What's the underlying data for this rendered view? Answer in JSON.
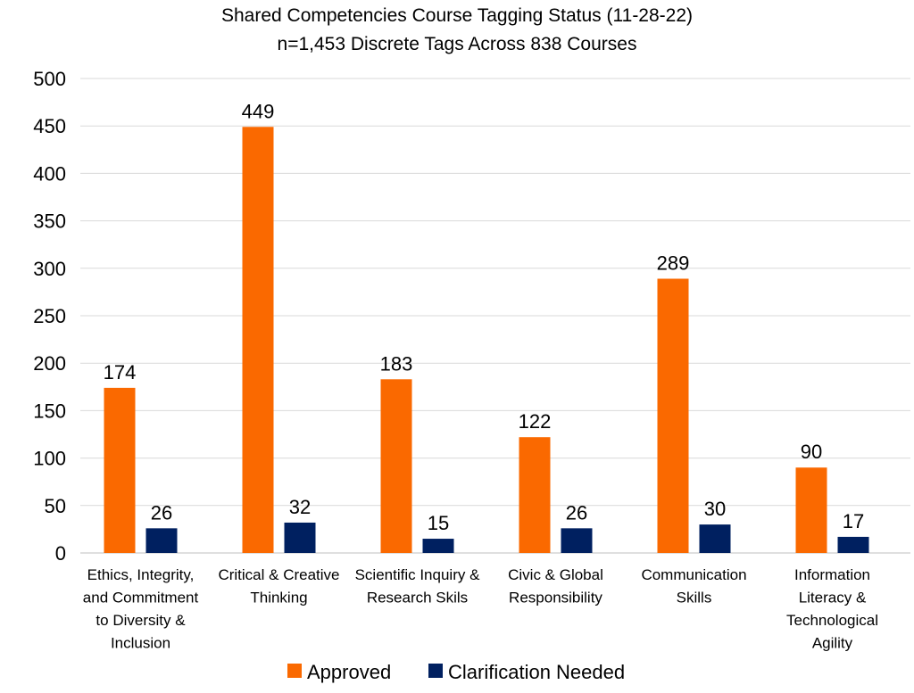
{
  "title": [
    "Shared Competencies Course Tagging Status (11-28-22)",
    "n=1,453 Discrete Tags Across 838 Courses"
  ],
  "chart_data": {
    "type": "bar",
    "title": "Shared Competencies Course Tagging Status (11-28-22)",
    "subtitle": "n=1,453 Discrete Tags Across 838 Courses",
    "categories": [
      [
        "Ethics, Integrity,",
        "and Commitment",
        "to Diversity &",
        "Inclusion"
      ],
      [
        "Critical & Creative",
        "Thinking"
      ],
      [
        "Scientific Inquiry &",
        "Research Skils"
      ],
      [
        "Civic & Global",
        "Responsibility"
      ],
      [
        "Communication",
        "Skills"
      ],
      [
        "Information",
        "Literacy &",
        "Technological",
        "Agility"
      ]
    ],
    "series": [
      {
        "name": "Approved",
        "color": "#fa6900",
        "values": [
          174,
          449,
          183,
          122,
          289,
          90
        ]
      },
      {
        "name": "Clarification Needed",
        "color": "#002060",
        "values": [
          26,
          32,
          15,
          26,
          30,
          17
        ]
      }
    ],
    "ylim": [
      0,
      500
    ],
    "yticks": [
      0,
      50,
      100,
      150,
      200,
      250,
      300,
      350,
      400,
      450,
      500
    ],
    "grid": true,
    "legend": "bottom",
    "xlabel": "",
    "ylabel": ""
  }
}
